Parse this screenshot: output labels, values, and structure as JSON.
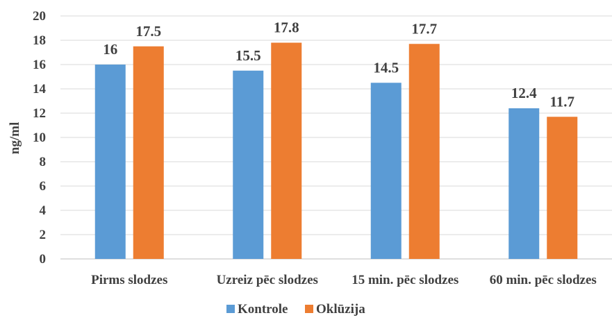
{
  "chart_data": {
    "type": "bar",
    "title": "",
    "xlabel": "",
    "ylabel": "ng/ml",
    "ylim": [
      0,
      20
    ],
    "yticks": [
      0,
      2,
      4,
      6,
      8,
      10,
      12,
      14,
      16,
      18,
      20
    ],
    "grid": true,
    "legend_position": "bottom",
    "categories": [
      "Pirms slodzes",
      "Uzreiz pēc slodzes",
      "15 min. pēc slodzes",
      "60 min. pēc slodzes"
    ],
    "series": [
      {
        "name": "Kontrole",
        "color": "#5b9bd5",
        "values": [
          16,
          15.5,
          14.5,
          12.4
        ]
      },
      {
        "name": "Oklūzija",
        "color": "#ed7d31",
        "values": [
          17.5,
          17.8,
          17.7,
          11.7
        ]
      }
    ]
  }
}
